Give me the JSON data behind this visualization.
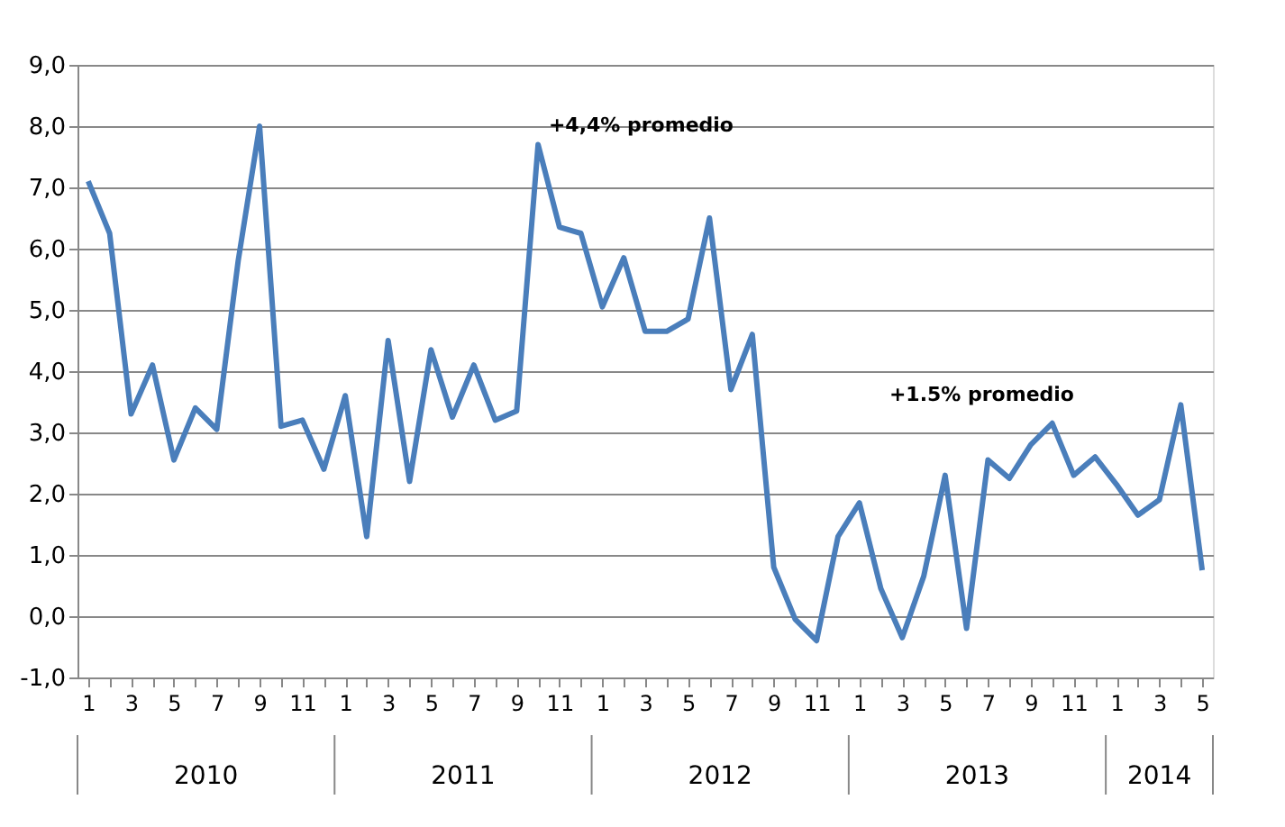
{
  "chart_data": {
    "type": "line",
    "categories": [
      "1",
      null,
      "3",
      null,
      "5",
      null,
      "7",
      null,
      "9",
      null,
      "11",
      null,
      "1",
      null,
      "3",
      null,
      "5",
      null,
      "7",
      null,
      "9",
      null,
      "11",
      null,
      "1",
      null,
      "3",
      null,
      "5",
      null,
      "7",
      null,
      "9",
      null,
      "11",
      null,
      "1",
      null,
      "3",
      null,
      "5",
      null,
      "7",
      null,
      "9",
      null,
      "11",
      null,
      "1",
      null,
      "3",
      null,
      "5"
    ],
    "series": [
      {
        "color": "#4a7ebb",
        "values": [
          7.1,
          6.25,
          3.3,
          4.1,
          2.55,
          3.4,
          3.05,
          5.8,
          8.0,
          3.1,
          3.2,
          2.4,
          3.6,
          1.3,
          4.5,
          2.2,
          4.35,
          3.25,
          4.1,
          3.2,
          3.35,
          7.7,
          6.35,
          6.25,
          5.05,
          5.85,
          4.65,
          4.65,
          4.85,
          6.5,
          3.7,
          4.6,
          0.8,
          -0.05,
          -0.4,
          1.3,
          1.85,
          0.45,
          -0.35,
          0.65,
          2.3,
          -0.2,
          2.55,
          2.25,
          2.8,
          3.15,
          2.3,
          2.6,
          2.15,
          1.65,
          1.9,
          3.45,
          0.75
        ]
      }
    ],
    "ylim": [
      -1,
      9
    ],
    "yticks": [
      {
        "value": -1,
        "label": "-1,0"
      },
      {
        "value": 0,
        "label": "0,0"
      },
      {
        "value": 1,
        "label": "1,0"
      },
      {
        "value": 2,
        "label": "2,0"
      },
      {
        "value": 3,
        "label": "3,0"
      },
      {
        "value": 4,
        "label": "4,0"
      },
      {
        "value": 5,
        "label": "5,0"
      },
      {
        "value": 6,
        "label": "6,0"
      },
      {
        "value": 7,
        "label": "7,0"
      },
      {
        "value": 8,
        "label": "8,0"
      },
      {
        "value": 9,
        "label": "9,0"
      }
    ],
    "grid": "y",
    "marker": "none",
    "line_style": "solid",
    "annotations": [
      "+4,4% promedio",
      "+1.5% promedio",
      "2010",
      "2011",
      "2012",
      "2013",
      "2014"
    ]
  }
}
